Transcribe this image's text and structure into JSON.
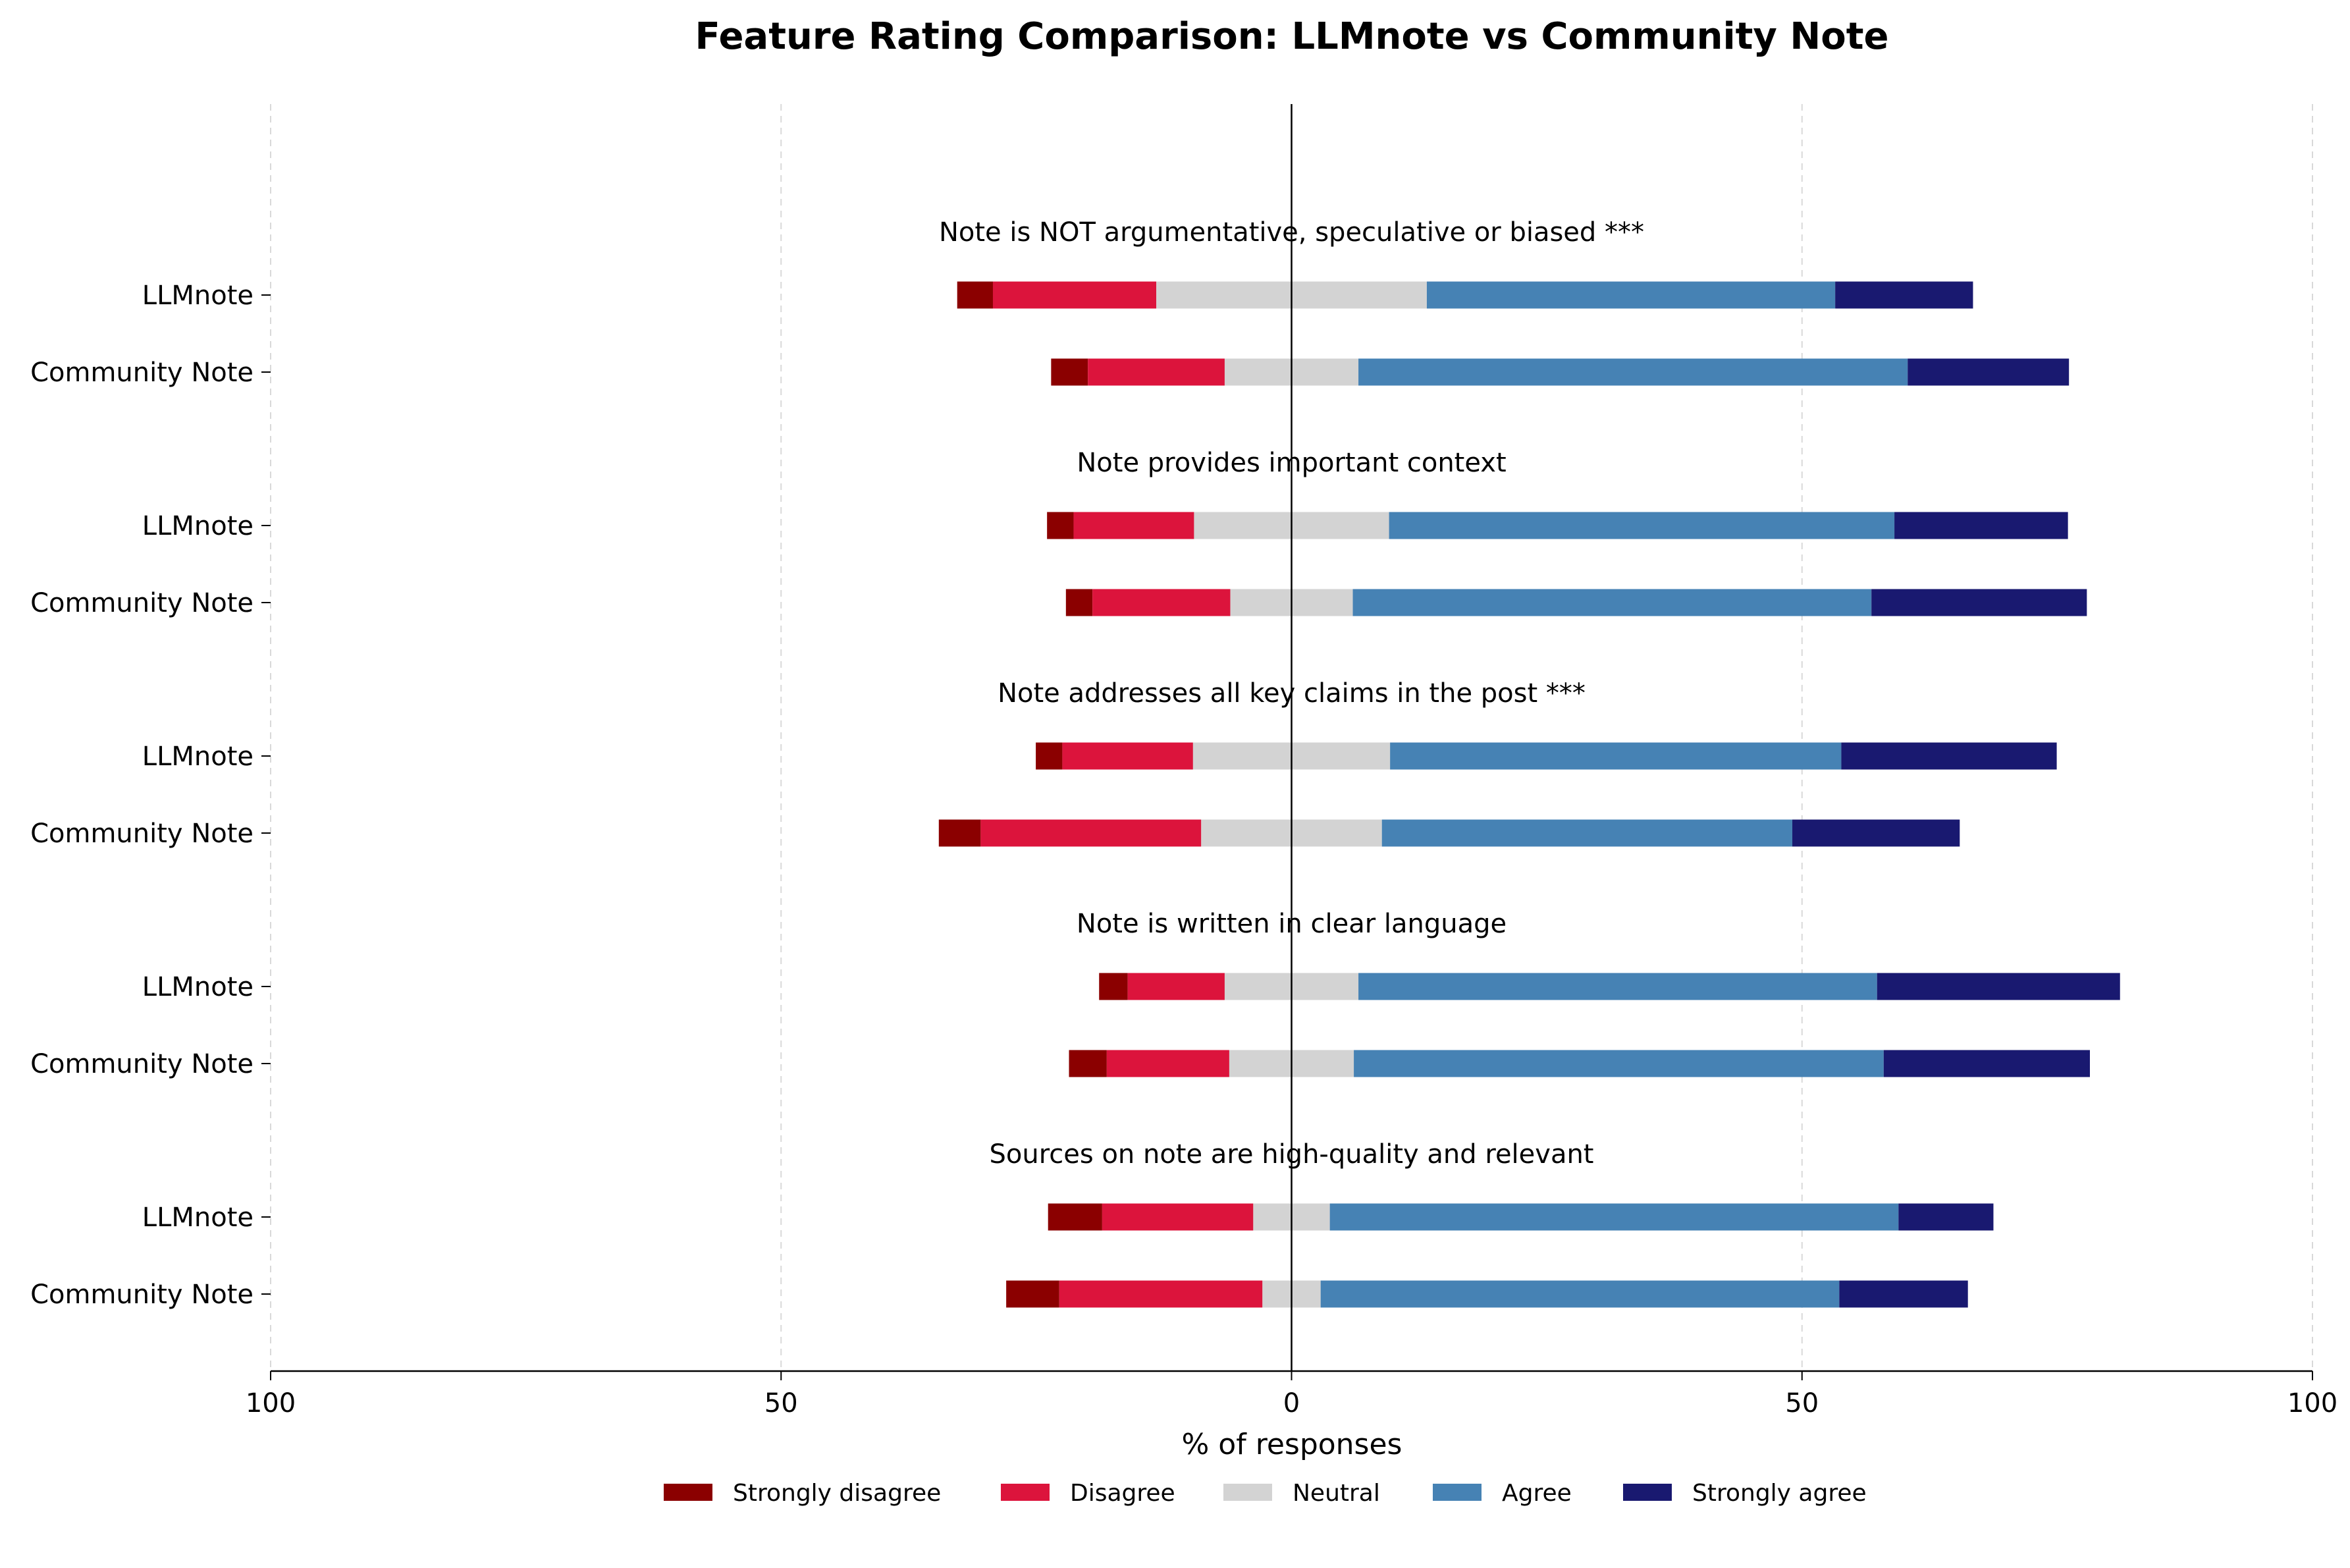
{
  "chart_data": {
    "type": "bar",
    "orientation": "horizontal",
    "stacking": "diverging",
    "title": "Feature Rating Comparison: LLMnote vs Community Note",
    "xlabel": "% of responses",
    "xlim": [
      -100,
      100
    ],
    "xticks": [
      -100,
      -50,
      0,
      50,
      100
    ],
    "xtick_labels": [
      "100",
      "50",
      "0",
      "50",
      "100"
    ],
    "grid": "vertical dashed",
    "legend_position": "bottom-center",
    "categories": [
      "Strongly disagree",
      "Disagree",
      "Neutral",
      "Agree",
      "Strongly agree"
    ],
    "colors": {
      "Strongly disagree": "#8b0000",
      "Disagree": "#dc143c",
      "Neutral": "#d3d3d3",
      "Agree": "#4682b4",
      "Strongly agree": "#191970"
    },
    "groups": [
      {
        "title": "Note is NOT argumentative, speculative or biased ***",
        "rows": [
          {
            "label": "LLMnote",
            "values": [
              3.5,
              16.0,
              26.5,
              40.0,
              13.5
            ]
          },
          {
            "label": "Community Note",
            "values": [
              3.6,
              13.4,
              13.1,
              53.8,
              15.8
            ]
          }
        ]
      },
      {
        "title": "Note provides important context",
        "rows": [
          {
            "label": "LLMnote",
            "values": [
              2.6,
              11.8,
              19.1,
              49.5,
              17.0
            ]
          },
          {
            "label": "Community Note",
            "values": [
              2.6,
              13.5,
              12.0,
              50.8,
              21.1
            ]
          }
        ]
      },
      {
        "title": "Note addresses all key claims in the post ***",
        "rows": [
          {
            "label": "LLMnote",
            "values": [
              2.6,
              12.8,
              19.3,
              44.2,
              21.1
            ]
          },
          {
            "label": "Community Note",
            "values": [
              4.1,
              21.6,
              17.7,
              40.2,
              16.4
            ]
          }
        ]
      },
      {
        "title": "Note is written in clear language",
        "rows": [
          {
            "label": "LLMnote",
            "values": [
              2.8,
              9.5,
              13.1,
              50.8,
              23.8
            ]
          },
          {
            "label": "Community Note",
            "values": [
              3.7,
              12.0,
              12.2,
              51.9,
              20.2
            ]
          }
        ]
      },
      {
        "title": "Sources on note are high-quality and relevant",
        "rows": [
          {
            "label": "LLMnote",
            "values": [
              5.3,
              14.8,
              7.5,
              55.7,
              9.3
            ]
          },
          {
            "label": "Community Note",
            "values": [
              5.2,
              19.9,
              5.7,
              50.8,
              12.6
            ]
          }
        ]
      }
    ]
  }
}
